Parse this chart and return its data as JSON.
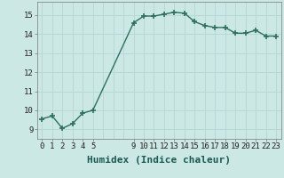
{
  "x": [
    0,
    1,
    2,
    3,
    4,
    5,
    9,
    10,
    11,
    12,
    13,
    14,
    15,
    16,
    17,
    18,
    19,
    20,
    21,
    22,
    23
  ],
  "y": [
    9.55,
    9.7,
    9.05,
    9.3,
    9.85,
    10.0,
    14.6,
    14.95,
    14.95,
    15.05,
    15.15,
    15.1,
    14.65,
    14.45,
    14.35,
    14.35,
    14.05,
    14.05,
    14.2,
    13.9,
    13.9
  ],
  "line_color": "#2d7060",
  "marker": "+",
  "marker_size": 4,
  "bg_color": "#cce8e5",
  "grid_color": "#b8d8d5",
  "xlabel": "Humidex (Indice chaleur)",
  "xlabel_fontsize": 8,
  "ylim": [
    8.5,
    15.7
  ],
  "xlim": [
    -0.5,
    23.5
  ],
  "yticks": [
    9,
    10,
    11,
    12,
    13,
    14,
    15
  ],
  "xticks": [
    0,
    1,
    2,
    3,
    4,
    5,
    9,
    10,
    11,
    12,
    13,
    14,
    15,
    16,
    17,
    18,
    19,
    20,
    21,
    22,
    23
  ],
  "tick_fontsize": 6.5,
  "line_width": 1.0
}
